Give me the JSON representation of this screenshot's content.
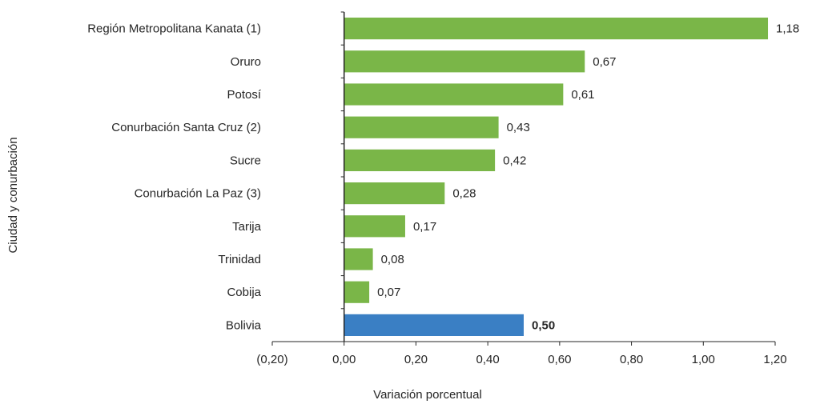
{
  "chart_data": {
    "type": "bar",
    "orientation": "horizontal",
    "xlabel": "Variación porcentual",
    "ylabel": "Ciudad y conurbación",
    "xlim": [
      -0.2,
      1.2
    ],
    "x_ticks": [
      -0.2,
      0.0,
      0.2,
      0.4,
      0.6,
      0.8,
      1.0,
      1.2
    ],
    "x_tick_labels": [
      "(0,20)",
      "0,00",
      "0,20",
      "0,40",
      "0,60",
      "0,80",
      "1,00",
      "1,20"
    ],
    "grid": false,
    "categories": [
      "Región Metropolitana Kanata (1)",
      "Oruro",
      "Potosí",
      "Conurbación Santa Cruz (2)",
      "Sucre",
      "Conurbación La Paz (3)",
      "Tarija",
      "Trinidad",
      "Cobija",
      "Bolivia"
    ],
    "values": [
      1.18,
      0.67,
      0.61,
      0.43,
      0.42,
      0.28,
      0.17,
      0.08,
      0.07,
      0.5
    ],
    "value_labels": [
      "1,18",
      "0,67",
      "0,61",
      "0,43",
      "0,42",
      "0,28",
      "0,17",
      "0,08",
      "0,07",
      "0,50"
    ],
    "bar_colors": [
      "#7ab648",
      "#7ab648",
      "#7ab648",
      "#7ab648",
      "#7ab648",
      "#7ab648",
      "#7ab648",
      "#7ab648",
      "#7ab648",
      "#3a7fc4"
    ],
    "bold_labels": [
      "Bolivia"
    ]
  }
}
